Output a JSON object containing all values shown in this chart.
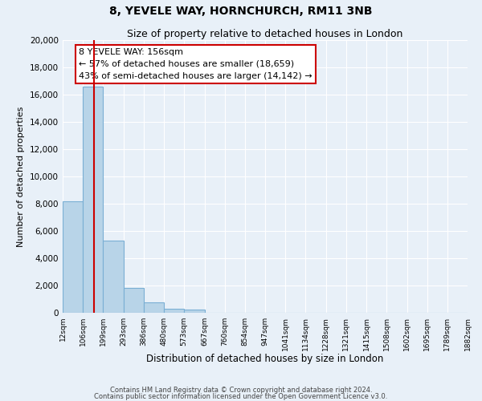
{
  "title": "8, YEVELE WAY, HORNCHURCH, RM11 3NB",
  "subtitle": "Size of property relative to detached houses in London",
  "xlabel": "Distribution of detached houses by size in London",
  "ylabel": "Number of detached properties",
  "bin_labels": [
    "12sqm",
    "106sqm",
    "199sqm",
    "293sqm",
    "386sqm",
    "480sqm",
    "573sqm",
    "667sqm",
    "760sqm",
    "854sqm",
    "947sqm",
    "1041sqm",
    "1134sqm",
    "1228sqm",
    "1321sqm",
    "1415sqm",
    "1508sqm",
    "1602sqm",
    "1695sqm",
    "1789sqm",
    "1882sqm"
  ],
  "bar_values": [
    8150,
    16600,
    5300,
    1850,
    780,
    300,
    220,
    0,
    0,
    0,
    0,
    0,
    0,
    0,
    0,
    0,
    0,
    0,
    0,
    0
  ],
  "bar_color": "#b8d4e8",
  "bar_edge_color": "#7aafd4",
  "ylim": [
    0,
    20000
  ],
  "yticks": [
    0,
    2000,
    4000,
    6000,
    8000,
    10000,
    12000,
    14000,
    16000,
    18000,
    20000
  ],
  "property_line_color": "#cc0000",
  "property_sqm": 156,
  "annotation_title": "8 YEVELE WAY: 156sqm",
  "annotation_line1": "← 57% of detached houses are smaller (18,659)",
  "annotation_line2": "43% of semi-detached houses are larger (14,142) →",
  "annotation_box_color": "#ffffff",
  "annotation_box_edge": "#cc0000",
  "footer1": "Contains HM Land Registry data © Crown copyright and database right 2024.",
  "footer2": "Contains public sector information licensed under the Open Government Licence v3.0.",
  "background_color": "#e8f0f8",
  "plot_background": "#e8f0f8",
  "grid_color": "#ffffff",
  "title_fontsize": 10,
  "subtitle_fontsize": 9,
  "bin_edges": [
    12,
    106,
    199,
    293,
    386,
    480,
    573,
    667,
    760,
    854,
    947,
    1041,
    1134,
    1228,
    1321,
    1415,
    1508,
    1602,
    1695,
    1789,
    1882
  ]
}
